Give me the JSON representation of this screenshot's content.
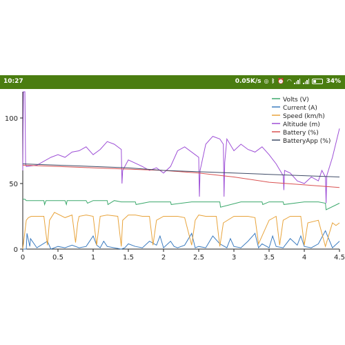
{
  "status_bar": {
    "time": "10:27",
    "net_speed": "0.05K/s",
    "battery_pct": "34%",
    "icons": [
      "nfc-icon",
      "bluetooth-icon",
      "alarm-icon",
      "wifi-icon",
      "signal-icon",
      "signal-icon",
      "battery-icon"
    ],
    "bg_color": "#4a7d10"
  },
  "chart_data": {
    "type": "line",
    "xlim": [
      0,
      4.5
    ],
    "ylim": [
      0,
      120
    ],
    "x_ticks": [
      "0",
      "0.5",
      "1",
      "1.5",
      "2",
      "2.5",
      "3",
      "3.5",
      "4",
      "4.5"
    ],
    "x_tick_values": [
      0,
      0.5,
      1,
      1.5,
      2,
      2.5,
      3,
      3.5,
      4,
      4.5
    ],
    "y_ticks": [
      "0",
      "50",
      "100"
    ],
    "y_tick_values": [
      0,
      50,
      100
    ],
    "legend_position": "top-right",
    "series": [
      {
        "name": "Volts (V)",
        "color": "#3aa86b",
        "x": [
          0.0,
          0.03,
          0.05,
          0.08,
          0.3,
          0.31,
          0.33,
          0.6,
          0.62,
          0.63,
          0.9,
          0.92,
          1.0,
          1.2,
          1.21,
          1.3,
          1.4,
          1.6,
          1.61,
          1.8,
          2.0,
          2.1,
          2.11,
          2.4,
          2.5,
          2.8,
          2.81,
          3.1,
          3.4,
          3.41,
          3.5,
          3.7,
          3.71,
          4.0,
          4.2,
          4.3,
          4.31,
          4.5
        ],
        "y": [
          38,
          38,
          37,
          37,
          37,
          34,
          37,
          37,
          34,
          37,
          37,
          35,
          37,
          37,
          34,
          37,
          36,
          36,
          34,
          36,
          36,
          36,
          34,
          36,
          36,
          36,
          32,
          36,
          36,
          34,
          36,
          36,
          34,
          36,
          36,
          35,
          30,
          35
        ]
      },
      {
        "name": "Current (A)",
        "color": "#3b7bbf",
        "x": [
          0.0,
          0.05,
          0.06,
          0.1,
          0.11,
          0.2,
          0.35,
          0.4,
          0.5,
          0.6,
          0.7,
          0.8,
          0.9,
          1.0,
          1.05,
          1.1,
          1.15,
          1.2,
          1.3,
          1.4,
          1.45,
          1.5,
          1.6,
          1.7,
          1.8,
          1.9,
          1.95,
          2.0,
          2.1,
          2.15,
          2.2,
          2.3,
          2.4,
          2.45,
          2.5,
          2.6,
          2.7,
          2.8,
          2.9,
          2.95,
          3.0,
          3.1,
          3.2,
          3.3,
          3.35,
          3.4,
          3.5,
          3.55,
          3.6,
          3.7,
          3.8,
          3.9,
          3.95,
          4.0,
          4.1,
          4.2,
          4.3,
          4.4,
          4.5
        ],
        "y": [
          0,
          0,
          12,
          2,
          8,
          1,
          6,
          0,
          2,
          1,
          3,
          1,
          2,
          10,
          3,
          1,
          6,
          2,
          1,
          0,
          1,
          4,
          2,
          1,
          6,
          3,
          10,
          1,
          6,
          2,
          1,
          3,
          12,
          1,
          2,
          1,
          10,
          4,
          1,
          8,
          2,
          1,
          6,
          12,
          1,
          4,
          1,
          10,
          2,
          1,
          8,
          3,
          10,
          2,
          1,
          4,
          14,
          1,
          6
        ]
      },
      {
        "name": "Speed (km/h)",
        "color": "#e8a33a",
        "x": [
          0.0,
          0.05,
          0.08,
          0.12,
          0.3,
          0.35,
          0.38,
          0.45,
          0.6,
          0.7,
          0.75,
          0.78,
          0.8,
          0.9,
          1.0,
          1.05,
          1.1,
          1.2,
          1.35,
          1.4,
          1.42,
          1.5,
          1.6,
          1.7,
          1.8,
          1.85,
          1.9,
          2.0,
          2.2,
          2.3,
          2.4,
          2.45,
          2.5,
          2.6,
          2.75,
          2.8,
          2.85,
          3.0,
          3.2,
          3.3,
          3.35,
          3.5,
          3.6,
          3.65,
          3.7,
          3.8,
          3.95,
          4.0,
          4.05,
          4.2,
          4.3,
          4.4,
          4.45,
          4.5
        ],
        "y": [
          0,
          22,
          24,
          25,
          25,
          3,
          22,
          28,
          24,
          26,
          5,
          20,
          25,
          26,
          25,
          3,
          25,
          26,
          25,
          2,
          22,
          26,
          26,
          25,
          25,
          3,
          22,
          25,
          25,
          24,
          3,
          22,
          26,
          25,
          25,
          2,
          20,
          25,
          25,
          24,
          4,
          22,
          25,
          3,
          22,
          25,
          25,
          3,
          20,
          22,
          2,
          20,
          18,
          20
        ]
      },
      {
        "name": "Altitude (m)",
        "color": "#9d4ed6",
        "x": [
          0.0,
          0.01,
          0.03,
          0.04,
          0.05,
          0.2,
          0.4,
          0.5,
          0.6,
          0.7,
          0.8,
          0.9,
          1.0,
          1.1,
          1.2,
          1.3,
          1.4,
          1.41,
          1.42,
          1.5,
          1.7,
          1.8,
          1.9,
          2.0,
          2.1,
          2.2,
          2.3,
          2.45,
          2.5,
          2.51,
          2.52,
          2.6,
          2.7,
          2.8,
          2.85,
          2.86,
          2.87,
          2.9,
          3.0,
          3.1,
          3.2,
          3.3,
          3.4,
          3.5,
          3.6,
          3.7,
          3.71,
          3.72,
          3.8,
          3.9,
          4.0,
          4.1,
          4.2,
          4.25,
          4.3,
          4.31,
          4.32,
          4.4,
          4.5
        ],
        "y": [
          60,
          120,
          120,
          65,
          63,
          64,
          70,
          72,
          70,
          74,
          75,
          78,
          72,
          76,
          82,
          80,
          76,
          50,
          60,
          68,
          63,
          60,
          62,
          58,
          63,
          75,
          78,
          72,
          70,
          40,
          60,
          80,
          86,
          84,
          80,
          40,
          66,
          84,
          75,
          80,
          76,
          74,
          78,
          72,
          65,
          56,
          45,
          60,
          58,
          52,
          50,
          55,
          52,
          60,
          55,
          35,
          56,
          70,
          92
        ]
      },
      {
        "name": "Battery (%)",
        "color": "#d95050",
        "x": [
          0.0,
          0.5,
          1.0,
          1.5,
          2.0,
          2.5,
          3.0,
          3.5,
          4.0,
          4.5
        ],
        "y": [
          64,
          63,
          62,
          61,
          60,
          58,
          55,
          51,
          49,
          47
        ]
      },
      {
        "name": "BatteryApp (%)",
        "color": "#3e4a66",
        "x": [
          0.0,
          0.5,
          1.0,
          1.5,
          2.0,
          2.5,
          3.0,
          3.5,
          4.0,
          4.5
        ],
        "y": [
          65,
          64,
          63,
          62,
          60,
          59,
          58,
          57,
          56,
          55
        ]
      }
    ]
  }
}
